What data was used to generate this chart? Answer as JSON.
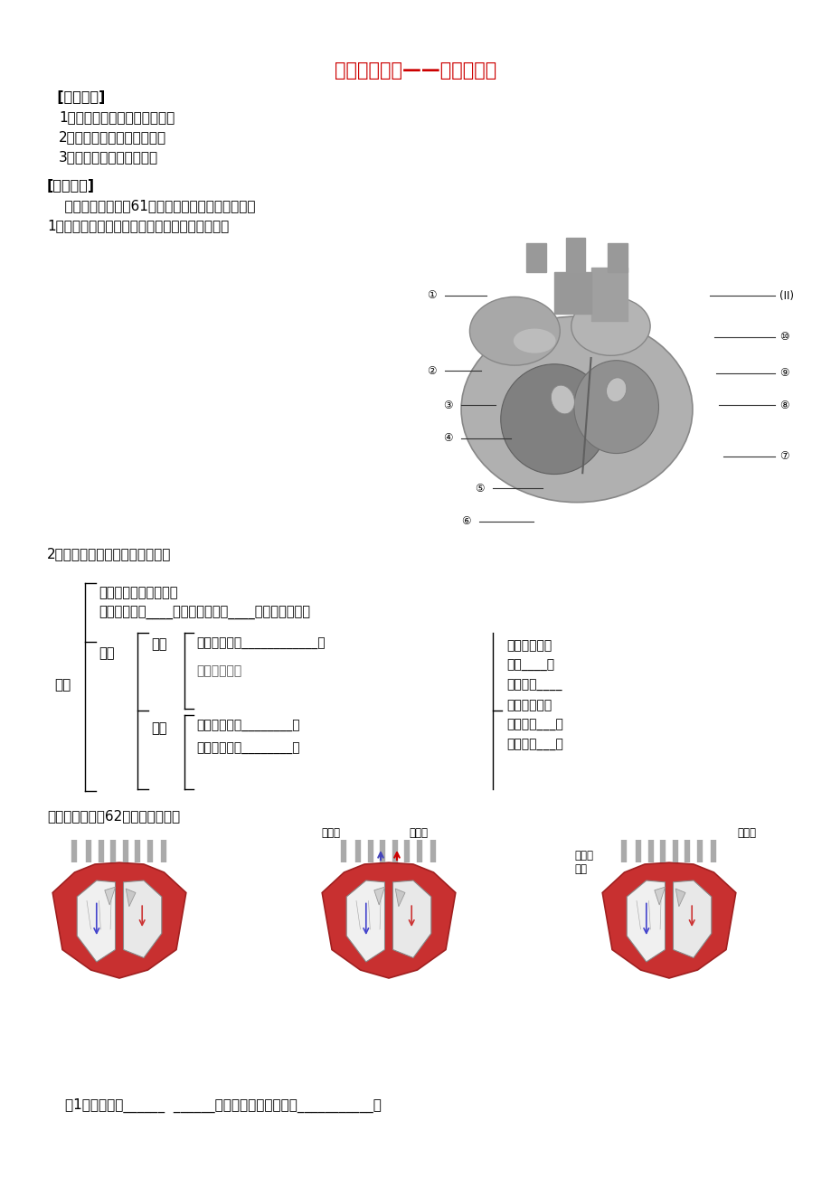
{
  "title": "输送血液的泵——心脏导学案",
  "title_color": "#cc0000",
  "bg_color": "#ffffff",
  "section1_header": "  [学习目标]",
  "section1_items": [
    "1．能说出心脏的结构和功能。",
    "2．能描述心脏的工作过程。",
    "3．概述血液循环的途径。"
  ],
  "section2_header": "[自主学习]",
  "section2_intro": "    请同学们观察课本61页心脏解剖图回答下列问题：",
  "section2_q1": "1、填写各部分名称：请大家写出各序号的名称？",
  "section2_q2": "2、根据上面的图完成下面问题：",
  "mm_position": "位置：胸腔中略偏左。",
  "mm_feature": "特点：主要由____构成、左心室壁____，与功能相适应",
  "mm_xinfang": "心房",
  "mm_zuoxinfang": "左心房：连通____________。",
  "mm_youxinfang": "右心房，连通",
  "mm_xinshi": "心室",
  "mm_zuoxinshi": "左心室：连通________。",
  "mm_youxinshi": "右心室：连通________。",
  "mm_jiegou": "结构",
  "mm_xizang": "心脏",
  "right_notes": [
    "心房与心室之",
    "间有____，",
    "只能朝向____",
    "开，心室与动",
    "脉之间有___，",
    "只能朝向___，"
  ],
  "section3_intro": "请大家阅读书本62页，回答问题。",
  "q1_text": "（1）甲图表示______  ______收缩，分别将血液压至___________。",
  "fig2_label_left": "肺动脉",
  "fig2_label_right": "主动脉",
  "fig3_label_left": "上下腔\n静脉",
  "fig3_label_right": "肺静脉"
}
